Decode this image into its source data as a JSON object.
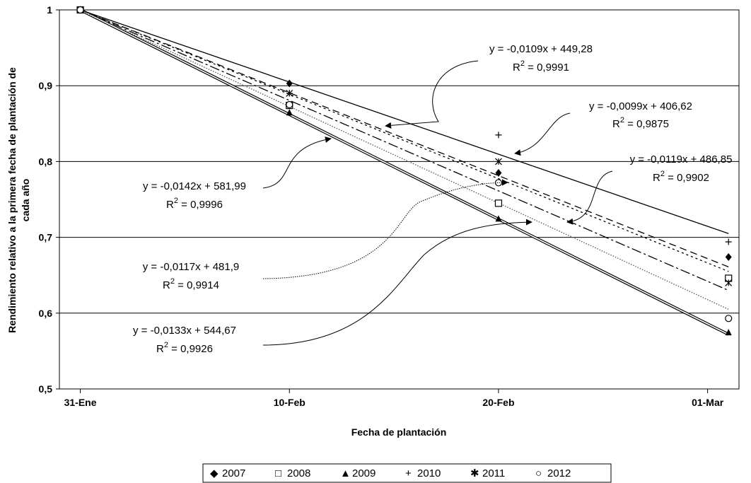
{
  "chart_data": {
    "type": "scatter",
    "xlabel": "Fecha de plantación",
    "ylabel_lines": [
      "Rendimiento relativo a la primera fecha de plantación de",
      "cada año"
    ],
    "x_tick_labels": [
      "31-Ene",
      "10-Feb",
      "20-Feb",
      "01-Mar"
    ],
    "x_ticks": [
      0,
      10,
      20,
      30
    ],
    "xlim": [
      -1,
      31.5
    ],
    "y_tick_labels": [
      "0,5",
      "0,6",
      "0,7",
      "0,8",
      "0,9",
      "1"
    ],
    "y_ticks": [
      0.5,
      0.6,
      0.7,
      0.8,
      0.9,
      1.0
    ],
    "ylim": [
      0.5,
      1.0
    ],
    "grid": "horizontal",
    "legend_position": "bottom",
    "series": [
      {
        "name": "2007",
        "marker": "diamond",
        "x": [
          0,
          10,
          20,
          31
        ],
        "y": [
          1.0,
          0.903,
          0.785,
          0.674
        ],
        "trend": {
          "start": [
            0,
            1.0
          ],
          "end": [
            31,
            0.661
          ]
        },
        "dash": "10 6",
        "color": "#000000"
      },
      {
        "name": "2008",
        "marker": "square",
        "x": [
          0,
          10,
          20,
          31
        ],
        "y": [
          1.0,
          0.874,
          0.745,
          0.646
        ],
        "trend": {
          "start": [
            0,
            1.0
          ],
          "end": [
            31,
            0.63
          ]
        },
        "dash": "14 4 3 4",
        "color": "#000000"
      },
      {
        "name": "2009",
        "marker": "triangle",
        "x": [
          0,
          10,
          20,
          31
        ],
        "y": [
          1.0,
          0.864,
          0.724,
          0.574
        ],
        "trend": {
          "start": [
            0,
            1.0
          ],
          "end": [
            31,
            0.572
          ]
        },
        "dash": "",
        "double": true,
        "color": "#000000"
      },
      {
        "name": "2010",
        "marker": "plus",
        "x": [
          0,
          10,
          20,
          31
        ],
        "y": [
          1.0,
          0.89,
          0.835,
          0.694
        ],
        "trend": {
          "start": [
            0,
            1.0
          ],
          "end": [
            31,
            0.705
          ]
        },
        "dash": "",
        "color": "#000000"
      },
      {
        "name": "2011",
        "marker": "star",
        "x": [
          0,
          10,
          20,
          31
        ],
        "y": [
          1.0,
          0.89,
          0.8,
          0.64
        ],
        "trend": {
          "start": [
            0,
            1.0
          ],
          "end": [
            31,
            0.655
          ]
        },
        "dash": "3 4",
        "color": "#000000"
      },
      {
        "name": "2012",
        "marker": "circle",
        "x": [
          0,
          10,
          20,
          31
        ],
        "y": [
          1.0,
          0.875,
          0.772,
          0.593
        ],
        "trend": {
          "start": [
            0,
            1.0
          ],
          "end": [
            31,
            0.605
          ]
        },
        "dash": "1.5 2",
        "color": "#555555"
      }
    ],
    "annotations": [
      {
        "equation": "y = -0,0109x + 449,28",
        "r2_value": " = 0,9991"
      },
      {
        "equation": "y = -0,0099x + 406,62",
        "r2_value": " = 0,9875"
      },
      {
        "equation": "y = -0,0119x + 486,85",
        "r2_value": " = 0,9902"
      },
      {
        "equation": "y = -0,0142x + 581,99",
        "r2_value": " = 0,9996"
      },
      {
        "equation": "y = -0,0117x + 481,9",
        "r2_value": " = 0,9914"
      },
      {
        "equation": "y = -0,0133x + 544,67",
        "r2_value": " = 0,9926"
      }
    ],
    "r2_label": "R",
    "r2_sup": "2",
    "legend": [
      {
        "symbol": "◆",
        "label": "2007"
      },
      {
        "symbol": "□",
        "label": "2008"
      },
      {
        "symbol": "▲",
        "label": "2009"
      },
      {
        "symbol": "+",
        "label": "2010"
      },
      {
        "symbol": "✱",
        "label": "2011"
      },
      {
        "symbol": "○",
        "label": "2012"
      }
    ]
  }
}
